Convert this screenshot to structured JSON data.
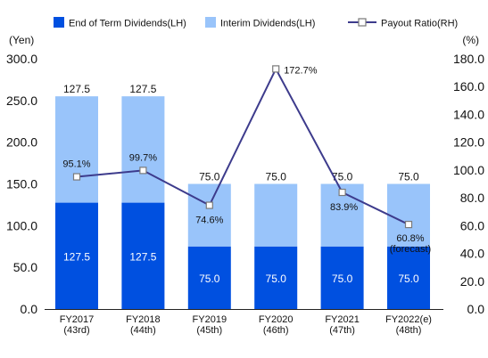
{
  "chart_data": {
    "type": "bar+line",
    "categories": [
      [
        "FY2017",
        "(43rd)"
      ],
      [
        "FY2018",
        "(44th)"
      ],
      [
        "FY2019",
        "(45th)"
      ],
      [
        "FY2020",
        "(46th)"
      ],
      [
        "FY2021",
        "(47th)"
      ],
      [
        "FY2022(e)",
        "(48th)"
      ]
    ],
    "series": [
      {
        "name": "End of Term Dividends(LH)",
        "type": "bar",
        "stack": "dividends",
        "axis": "left",
        "color": "#0050e0",
        "values": [
          127.5,
          127.5,
          75.0,
          75.0,
          75.0,
          75.0
        ],
        "labels": [
          "127.5",
          "127.5",
          "75.0",
          "75.0",
          "75.0",
          "75.0"
        ]
      },
      {
        "name": "Interim Dividends(LH)",
        "type": "bar",
        "stack": "dividends",
        "axis": "left",
        "color": "#99c4fa",
        "values": [
          127.5,
          127.5,
          75.0,
          75.0,
          75.0,
          75.0
        ],
        "labels": [
          "127.5",
          "127.5",
          "75.0",
          "75.0",
          "75.0",
          "75.0"
        ]
      },
      {
        "name": "Payout Ratio(RH)",
        "type": "line",
        "axis": "right",
        "color": "#3d3b8c",
        "values": [
          95.1,
          99.7,
          74.6,
          172.7,
          83.9,
          60.8
        ],
        "labels": [
          "95.1%",
          "99.7%",
          "74.6%",
          "172.7%",
          "83.9%",
          "60.8%"
        ],
        "notes": [
          "",
          "",
          "",
          "",
          "",
          "(forecast)"
        ]
      }
    ],
    "left_axis": {
      "unit": "(Yen)",
      "ylim": [
        0,
        300
      ],
      "ticks": [
        "0.0",
        "50.0",
        "100.0",
        "150.0",
        "200.0",
        "250.0",
        "300.0"
      ]
    },
    "right_axis": {
      "unit": "(%)",
      "ylim": [
        0,
        180
      ],
      "ticks": [
        "0.0",
        "20.0",
        "40.0",
        "60.0",
        "80.0",
        "100.0",
        "120.0",
        "140.0",
        "160.0",
        "180.0"
      ]
    },
    "legend_position": "top",
    "grid": false
  }
}
